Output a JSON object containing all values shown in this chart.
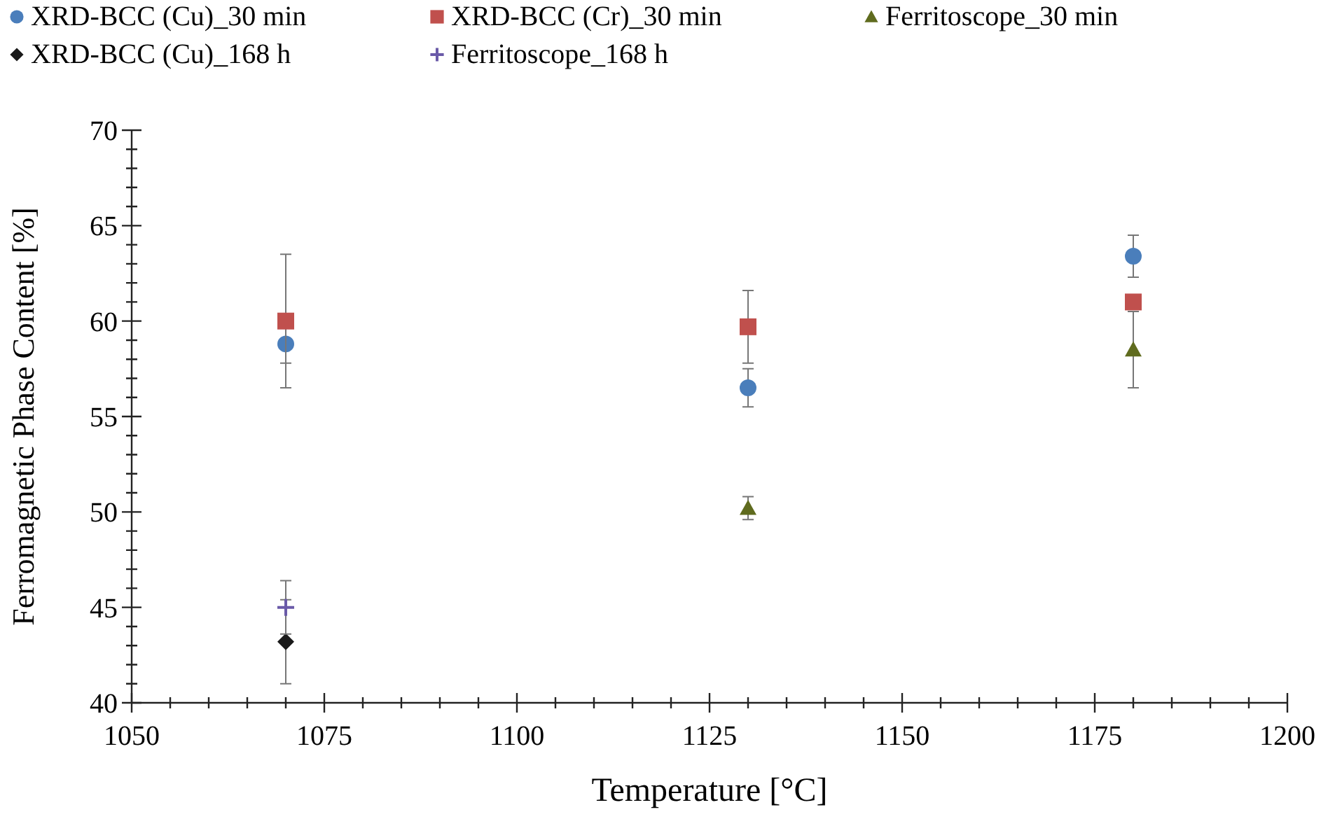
{
  "chart_data": {
    "type": "scatter",
    "xlabel": "Temperature [°C]",
    "ylabel": "Ferromagnetic Phase Content [%]",
    "xlim": [
      1050,
      1200
    ],
    "xticks": [
      1050,
      1075,
      1100,
      1125,
      1150,
      1175,
      1200
    ],
    "ylim": [
      40,
      70
    ],
    "yticks": [
      40,
      45,
      50,
      55,
      60,
      65,
      70
    ],
    "grid": false,
    "legend": "top",
    "series": [
      {
        "name": "XRD-BCC (Cu)_30 min",
        "color": "#4a7ebb",
        "marker": "circle",
        "x": [
          1070,
          1130,
          1180
        ],
        "values": [
          58.8,
          56.5,
          63.4
        ],
        "errors": [
          1,
          1,
          1.1
        ]
      },
      {
        "name": "XRD-BCC (Cr)_30 min",
        "color": "#c0504d",
        "marker": "square",
        "x": [
          1070,
          1130,
          1180
        ],
        "values": [
          60,
          59.7,
          61
        ],
        "errors": [
          3.5,
          1.9,
          null
        ]
      },
      {
        "name": "Ferritoscope_30 min",
        "color": "#5f6b1e",
        "marker": "triangle",
        "x": [
          1130,
          1180
        ],
        "values": [
          50.2,
          58.5
        ],
        "errors": [
          0.6,
          2
        ]
      },
      {
        "name": "XRD-BCC (Cu)_168 h",
        "color": "#1a1a1a",
        "marker": "diamond",
        "x": [
          1070
        ],
        "values": [
          43.2
        ],
        "errors": [
          2.2
        ]
      },
      {
        "name": "Ferritoscope_168 h",
        "color": "#6a5aa8",
        "marker": "cross",
        "x": [
          1070
        ],
        "values": [
          45
        ],
        "errors": [
          1.4
        ]
      }
    ]
  }
}
